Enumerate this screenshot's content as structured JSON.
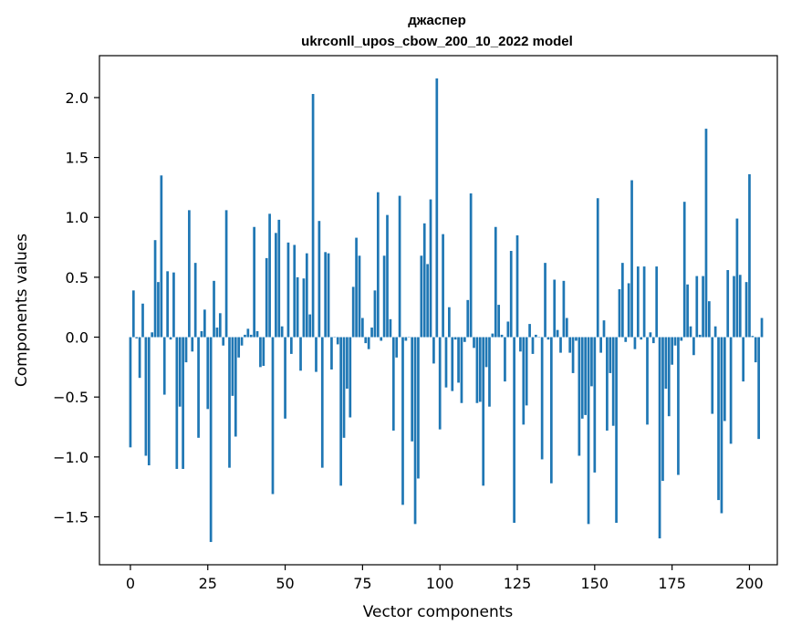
{
  "chart_data": {
    "type": "bar",
    "title": "джаспер",
    "subtitle": "ukrconll_upos_cbow_200_10_2022 model",
    "xlabel": "Vector components",
    "ylabel": "Components values",
    "xlim": [
      -10,
      209
    ],
    "ylim": [
      -1.9,
      2.35
    ],
    "xticks": [
      0,
      25,
      50,
      75,
      100,
      125,
      150,
      175,
      200
    ],
    "yticks": [
      -1.5,
      -1.0,
      -0.5,
      0.0,
      0.5,
      1.0,
      1.5,
      2.0
    ],
    "xtick_labels": [
      "0",
      "25",
      "50",
      "75",
      "100",
      "125",
      "150",
      "175",
      "200"
    ],
    "ytick_labels": [
      "−1.5",
      "−1.0",
      "−0.5",
      "0.0",
      "0.5",
      "1.0",
      "1.5",
      "2.0"
    ],
    "bar_color": "#1f77b4",
    "values": [
      -0.92,
      0.39,
      -0.01,
      -0.34,
      0.28,
      -0.99,
      -1.07,
      0.04,
      0.81,
      0.46,
      1.35,
      -0.48,
      0.55,
      -0.02,
      0.54,
      -1.1,
      -0.58,
      -1.1,
      -0.21,
      1.06,
      -0.12,
      0.62,
      -0.84,
      0.05,
      0.23,
      -0.6,
      -1.71,
      0.47,
      0.08,
      0.2,
      -0.07,
      1.06,
      -1.09,
      -0.49,
      -0.83,
      -0.17,
      -0.07,
      0.02,
      0.07,
      0.02,
      0.92,
      0.05,
      -0.25,
      -0.24,
      0.66,
      1.03,
      -1.31,
      0.87,
      0.98,
      0.09,
      -0.68,
      0.79,
      -0.14,
      0.77,
      0.5,
      -0.28,
      0.49,
      0.7,
      0.19,
      2.03,
      -0.29,
      0.97,
      -1.09,
      0.71,
      0.7,
      -0.27,
      0.0,
      -0.06,
      -1.24,
      -0.84,
      -0.43,
      -0.67,
      0.42,
      0.83,
      0.68,
      0.16,
      -0.05,
      -0.1,
      0.08,
      0.39,
      1.21,
      -0.03,
      0.68,
      1.02,
      0.15,
      -0.78,
      -0.17,
      1.18,
      -1.4,
      -0.03,
      0.0,
      -0.87,
      -1.56,
      -1.18,
      0.68,
      0.95,
      0.61,
      1.15,
      -0.22,
      2.16,
      -0.77,
      0.86,
      -0.42,
      0.25,
      -0.45,
      -0.02,
      -0.38,
      -0.55,
      -0.04,
      0.31,
      1.2,
      -0.09,
      -0.55,
      -0.54,
      -1.24,
      -0.25,
      -0.58,
      0.03,
      0.92,
      0.27,
      0.02,
      -0.37,
      0.13,
      0.72,
      -1.55,
      0.85,
      -0.12,
      -0.73,
      -0.57,
      0.11,
      -0.14,
      0.02,
      0.0,
      -1.02,
      0.62,
      -0.02,
      -1.22,
      0.48,
      0.06,
      -0.13,
      0.47,
      0.16,
      -0.13,
      -0.3,
      -0.03,
      -0.99,
      -0.68,
      -0.65,
      -1.56,
      -0.41,
      -1.13,
      1.16,
      -0.13,
      0.14,
      -0.78,
      -0.3,
      -0.74,
      -1.55,
      0.4,
      0.62,
      -0.04,
      0.45,
      1.31,
      -0.1,
      0.59,
      -0.02,
      0.59,
      -0.73,
      0.04,
      -0.05,
      0.59,
      -1.68,
      -1.2,
      -0.43,
      -0.66,
      -0.23,
      -0.07,
      -1.15,
      -0.03,
      1.13,
      0.44,
      0.09,
      -0.15,
      0.51,
      0.02,
      0.51,
      1.74,
      0.3,
      -0.64,
      0.09,
      -1.36,
      -1.47,
      -0.7,
      0.56,
      -0.89,
      0.51,
      0.99,
      0.52,
      -0.37,
      0.46,
      1.36,
      0.01,
      -0.21,
      -0.85,
      0.16
    ]
  }
}
